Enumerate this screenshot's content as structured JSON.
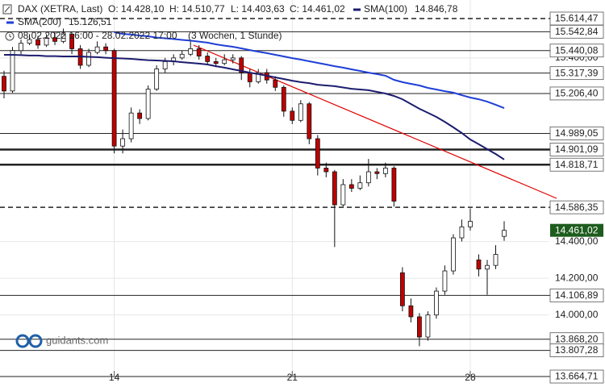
{
  "chart_data": {
    "type": "candlestick",
    "header": {
      "instrument": "DAX (XETRA, Last)",
      "open": "O: 14.428,10",
      "high": "H: 14.510,77",
      "low": "L: 14.403,63",
      "close": "C: 14.461,02",
      "period": "08.02.2022 16:00 - 28.02.2022 17:00",
      "resolution": "(3 Wochen, 1 Stunde)",
      "logo": "guidants.com"
    },
    "categories": [
      null,
      null,
      null,
      null,
      null,
      null,
      null,
      null,
      null,
      null,
      null,
      null,
      null,
      "14",
      null,
      null,
      null,
      null,
      null,
      null,
      null,
      null,
      null,
      null,
      null,
      null,
      null,
      null,
      null,
      null,
      null,
      null,
      null,
      null,
      "21",
      null,
      null,
      null,
      null,
      null,
      null,
      null,
      null,
      null,
      null,
      null,
      null,
      null,
      null,
      null,
      null,
      null,
      null,
      null,
      null,
      "28",
      null,
      null,
      null,
      null
    ],
    "open": [
      15300,
      15220,
      15440,
      15480,
      15500,
      15470,
      15510,
      15490,
      15530,
      15450,
      15360,
      15430,
      15460,
      15440,
      14920,
      14960,
      15100,
      15070,
      15230,
      15340,
      15380,
      15400,
      15420,
      15450,
      15410,
      15380,
      15370,
      15390,
      15400,
      15320,
      15270,
      15320,
      15280,
      15240,
      15110,
      15060,
      15150,
      14960,
      14800,
      14780,
      14600,
      14710,
      14690,
      14720,
      14780,
      14770,
      14800,
      14230,
      14050,
      13990,
      13880,
      14000,
      14130,
      14240,
      14420,
      14480,
      14300,
      14250,
      14270,
      14428.1
    ],
    "high": [
      15330,
      15460,
      15500,
      15530,
      15520,
      15530,
      15540,
      15560,
      15540,
      15470,
      15450,
      15490,
      15480,
      15450,
      15010,
      15130,
      15120,
      15250,
      15360,
      15400,
      15420,
      15440,
      15490,
      15470,
      15430,
      15400,
      15420,
      15420,
      15410,
      15340,
      15340,
      15340,
      15300,
      15250,
      15130,
      15170,
      15160,
      14980,
      14830,
      14790,
      14740,
      14740,
      14760,
      14850,
      14800,
      14830,
      14810,
      14260,
      14090,
      14010,
      14020,
      14150,
      14270,
      14440,
      14520,
      14580,
      14330,
      14300,
      14380,
      14510.77
    ],
    "low": [
      15180,
      15210,
      15420,
      15470,
      15450,
      15460,
      15470,
      15480,
      15420,
      15340,
      15350,
      15420,
      15420,
      14880,
      14880,
      14940,
      15040,
      15060,
      15220,
      15320,
      15360,
      15390,
      15410,
      15390,
      15360,
      15350,
      15360,
      15370,
      15280,
      15240,
      15260,
      15260,
      15220,
      15080,
      15040,
      15050,
      14930,
      14760,
      14750,
      14370,
      14590,
      14670,
      14680,
      14700,
      14740,
      14750,
      14590,
      14020,
      13960,
      13830,
      13860,
      13980,
      14110,
      14220,
      14400,
      14460,
      14210,
      14110,
      14250,
      14403.63
    ],
    "close": [
      15220,
      15440,
      15480,
      15500,
      15470,
      15510,
      15490,
      15530,
      15450,
      15360,
      15430,
      15460,
      15440,
      14920,
      14960,
      15100,
      15070,
      15230,
      15340,
      15380,
      15400,
      15420,
      15450,
      15410,
      15380,
      15370,
      15390,
      15400,
      15320,
      15270,
      15320,
      15280,
      15240,
      15110,
      15060,
      15150,
      14960,
      14800,
      14780,
      14600,
      14710,
      14690,
      14720,
      14780,
      14770,
      14800,
      14620,
      14050,
      13990,
      13880,
      14000,
      14130,
      14240,
      14420,
      14480,
      14510,
      14250,
      14270,
      14330,
      14461.02
    ],
    "up_color": "#ffffff",
    "down_color": "#c00000",
    "series": [
      {
        "name": "SMA(100)",
        "value_label": "14.846,78",
        "color": "#1c1c6e",
        "values": [
          15417,
          15417,
          15415,
          15413,
          15413,
          15410,
          15410,
          15408,
          15408,
          15408,
          15406,
          15404,
          15401,
          15399,
          15397,
          15395,
          15391,
          15388,
          15386,
          15384,
          15382,
          15377,
          15373,
          15369,
          15364,
          15355,
          15347,
          15338,
          15329,
          15320,
          15312,
          15303,
          15294,
          15285,
          15276,
          15268,
          15263,
          15254,
          15250,
          15246,
          15239,
          15232,
          15228,
          15224,
          15215,
          15206,
          15193,
          15175,
          15149,
          15123,
          15101,
          15079,
          15052,
          15022,
          14991,
          14956,
          14930,
          14903,
          14877,
          14846.78
        ]
      },
      {
        "name": "SMA(200)",
        "value_label": "15.126,51",
        "color": "#1f3fd6",
        "values": [
          null,
          null,
          null,
          null,
          null,
          null,
          null,
          null,
          null,
          null,
          null,
          null,
          null,
          15540,
          15531,
          15527,
          15522,
          15518,
          15511,
          15507,
          15503,
          15498,
          15494,
          15489,
          15483,
          15474,
          15467,
          15461,
          15452,
          15443,
          15434,
          15426,
          15417,
          15408,
          15399,
          15391,
          15382,
          15373,
          15364,
          15355,
          15347,
          15338,
          15329,
          15320,
          15312,
          15303,
          15281,
          15268,
          15259,
          15250,
          15237,
          15228,
          15219,
          15211,
          15197,
          15184,
          15175,
          15162,
          15145,
          15126.51
        ]
      }
    ],
    "levels": [
      {
        "value": 15614.47,
        "label": "15.614,47",
        "style": "dashed"
      },
      {
        "value": 15542.84,
        "label": "15.542,84",
        "style": "solid"
      },
      {
        "value": 15440.08,
        "label": "15.440,08",
        "style": "solid"
      },
      {
        "value": 15317.39,
        "label": "15.317,39",
        "style": "solid"
      },
      {
        "value": 15206.4,
        "label": "15.206,40",
        "style": "solid"
      },
      {
        "value": 14989.05,
        "label": "14.989,05",
        "style": "solid"
      },
      {
        "value": 14901.09,
        "label": "14.901,09",
        "style": "thick"
      },
      {
        "value": 14818.71,
        "label": "14.818,71",
        "style": "thick"
      },
      {
        "value": 14586.35,
        "label": "14.586,35",
        "style": "dashed"
      },
      {
        "value": 14106.89,
        "label": "14.106,89",
        "style": "solid"
      },
      {
        "value": 13868.2,
        "label": "13.868,20",
        "style": "solid"
      },
      {
        "value": 13807.28,
        "label": "13.807,28",
        "style": "solid"
      },
      {
        "value": 13664.71,
        "label": "13.664,71",
        "style": "solid"
      }
    ],
    "last_price": {
      "value": 14461.02,
      "label": "14.461,02",
      "color": "#1d5c1d"
    },
    "ylim": [
      13607.8,
      15715.5
    ],
    "yticks": [
      {
        "value": 15400,
        "label": "15.400,00"
      },
      {
        "value": 14400,
        "label": "14.400,00"
      },
      {
        "value": 14200,
        "label": "14.200,00"
      },
      {
        "value": 14000,
        "label": "14.000,00"
      }
    ],
    "grid": true
  }
}
